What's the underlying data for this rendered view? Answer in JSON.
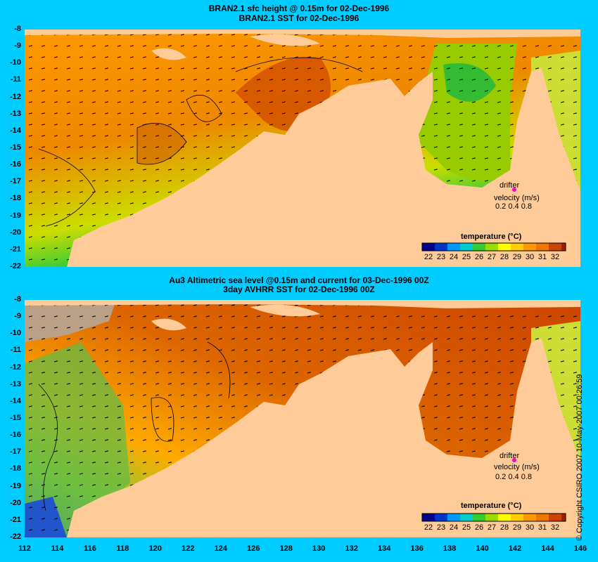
{
  "top_panel": {
    "title_line1": "BRAN2.1 sfc height @ 0.15m for 02-Dec-1996",
    "title_line2": "BRAN2.1  SST for 02-Dec-1996",
    "legend": {
      "drifter": "drifter",
      "velocity": "velocity (m/s)",
      "scale": "0.2 0.4 0.8"
    },
    "colorbar": {
      "title": "temperature (°C)",
      "ticks": [
        "22",
        "23",
        "24",
        "25",
        "26",
        "27",
        "28",
        "29",
        "30",
        "31",
        "32"
      ]
    }
  },
  "bottom_panel": {
    "title_line1": "Au3 Altimetric sea level  @0.15m and current for 03-Dec-1996 00Z",
    "title_line2": "3day AVHRR SST for 02-Dec-1996 00Z",
    "legend": {
      "drifter": "drifter",
      "velocity": "velocity (m/s)",
      "scale": "0.2 0.4 0.8"
    },
    "colorbar": {
      "title": "temperature (°C)",
      "ticks": [
        "22",
        "23",
        "24",
        "25",
        "26",
        "27",
        "28",
        "29",
        "30",
        "31",
        "32"
      ]
    }
  },
  "axes": {
    "lat_ticks": [
      "-8",
      "-9",
      "-10",
      "-11",
      "-12",
      "-13",
      "-14",
      "-15",
      "-16",
      "-17",
      "-18",
      "-19",
      "-20",
      "-21",
      "-22"
    ],
    "lon_ticks": [
      "112",
      "114",
      "116",
      "118",
      "120",
      "122",
      "124",
      "126",
      "128",
      "130",
      "132",
      "134",
      "136",
      "138",
      "140",
      "142",
      "144",
      "146"
    ]
  },
  "copyright": "© Copyright CSIRO 2007   10-May-2007 00:26:59",
  "colors": {
    "background": "#00ccff",
    "land": "#ffcc99",
    "colorbar": [
      "#00008b",
      "#0033cc",
      "#0099ff",
      "#00cccc",
      "#33cc33",
      "#99dd00",
      "#ffff00",
      "#ffcc00",
      "#ff9900",
      "#ee7700",
      "#cc4400",
      "#992200"
    ]
  }
}
